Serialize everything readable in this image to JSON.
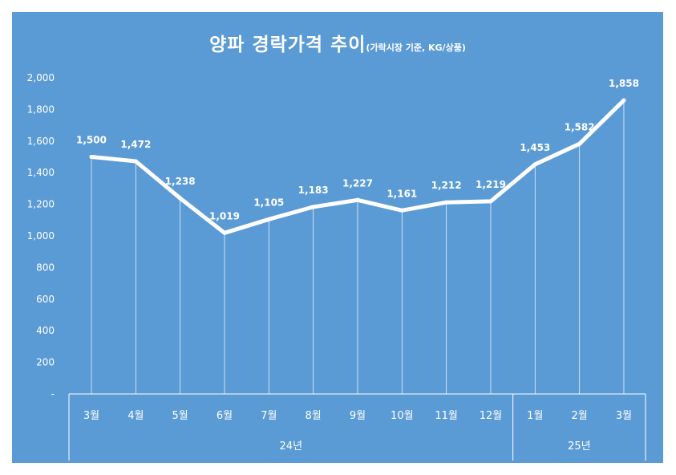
{
  "chart_data": {
    "type": "line",
    "title": "양파 경락가격 추이",
    "subtitle": "(가락시장 기준, KG/상품)",
    "categories": [
      "3월",
      "4월",
      "5월",
      "6월",
      "7월",
      "8월",
      "9월",
      "10월",
      "11월",
      "12월",
      "1월",
      "2월",
      "3월"
    ],
    "groups": [
      {
        "label": "24년",
        "count": 10
      },
      {
        "label": "25년",
        "count": 3
      }
    ],
    "series": [
      {
        "values": [
          1500,
          1472,
          1238,
          1019,
          1105,
          1183,
          1227,
          1161,
          1212,
          1219,
          1453,
          1582,
          1858
        ]
      }
    ],
    "data_labels": [
      "1,500",
      "1,472",
      "1,238",
      "1,019",
      "1,105",
      "1,183",
      "1,227",
      "1,161",
      "1,212",
      "1,219",
      "1,453",
      "1,582",
      "1,858"
    ],
    "y_ticks": [
      0,
      200,
      400,
      600,
      800,
      1000,
      1200,
      1400,
      1600,
      1800,
      2000
    ],
    "y_tick_labels": [
      "-",
      "200",
      "400",
      "600",
      "800",
      "1,000",
      "1,200",
      "1,400",
      "1,600",
      "1,800",
      "2,000"
    ],
    "ylim": [
      0,
      2000
    ],
    "drop_lines": true,
    "grid": false,
    "legend": "none",
    "colors": {
      "background": "#5b9bd5",
      "line": "#ffffff",
      "text": "#ffffff",
      "drop_line": "#ffffff",
      "page": "#ffffff"
    }
  }
}
